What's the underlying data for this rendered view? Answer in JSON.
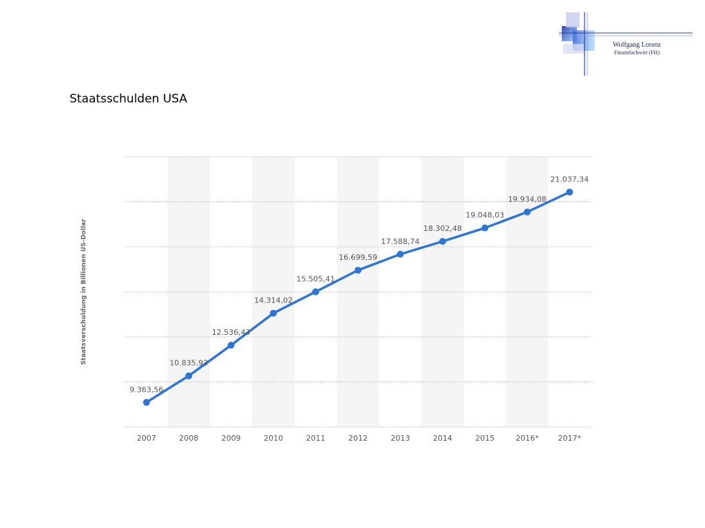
{
  "slide": {
    "title": "Staatsschulden USA"
  },
  "logo": {
    "name": "Wolfgang Lorenz",
    "subtitle": "Finanzfachwirt (FH)"
  },
  "colors": {
    "line": "#2e75d6",
    "band": "#f5f5f5",
    "grid": "#bdbdbd",
    "text": "#555555"
  },
  "chart_data": {
    "type": "line",
    "ylabel": "Staatsverschuldung in Billionen US-Dollar",
    "categories": [
      "2007",
      "2008",
      "2009",
      "2010",
      "2011",
      "2012",
      "2013",
      "2014",
      "2015",
      "2016*",
      "2017*"
    ],
    "series": [
      {
        "values": [
          9363.56,
          10835.93,
          12536.43,
          14314.02,
          15505.41,
          16699.59,
          17588.74,
          18302.48,
          19048.03,
          19934.08,
          21037.34
        ],
        "labels": [
          "9.363,56",
          "10.835,93",
          "12.536,43",
          "14.314,02",
          "15.505,41",
          "16.699,59",
          "17.588,74",
          "18.302,48",
          "19.048,03",
          "19.934,08",
          "21.037,34"
        ]
      }
    ],
    "ylim": [
      8000,
      23000
    ],
    "gridlines": 7,
    "grid": true,
    "alternating_bands": true
  }
}
